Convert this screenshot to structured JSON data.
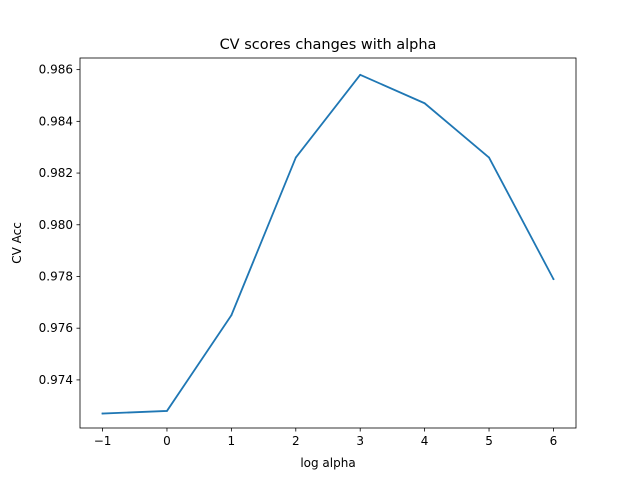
{
  "chart_data": {
    "type": "line",
    "title": "CV scores changes with alpha",
    "xlabel": "log alpha",
    "ylabel": "CV Acc",
    "xlim": [
      -1.35,
      6.35
    ],
    "ylim": [
      0.97214,
      0.98645
    ],
    "xticks": [
      -1,
      0,
      1,
      2,
      3,
      4,
      5,
      6
    ],
    "xtick_labels": [
      "−1",
      "0",
      "1",
      "2",
      "3",
      "4",
      "5",
      "6"
    ],
    "yticks": [
      0.974,
      0.976,
      0.978,
      0.98,
      0.982,
      0.984,
      0.986
    ],
    "ytick_labels": [
      "0.974",
      "0.976",
      "0.978",
      "0.980",
      "0.982",
      "0.984",
      "0.986"
    ],
    "grid": false,
    "series": [
      {
        "color": "#1f77b4",
        "x": [
          -1,
          0,
          1,
          2,
          3,
          4,
          5,
          6
        ],
        "values": [
          0.9727,
          0.9728,
          0.9765,
          0.9826,
          0.9858,
          0.9847,
          0.9826,
          0.9779
        ]
      }
    ]
  }
}
